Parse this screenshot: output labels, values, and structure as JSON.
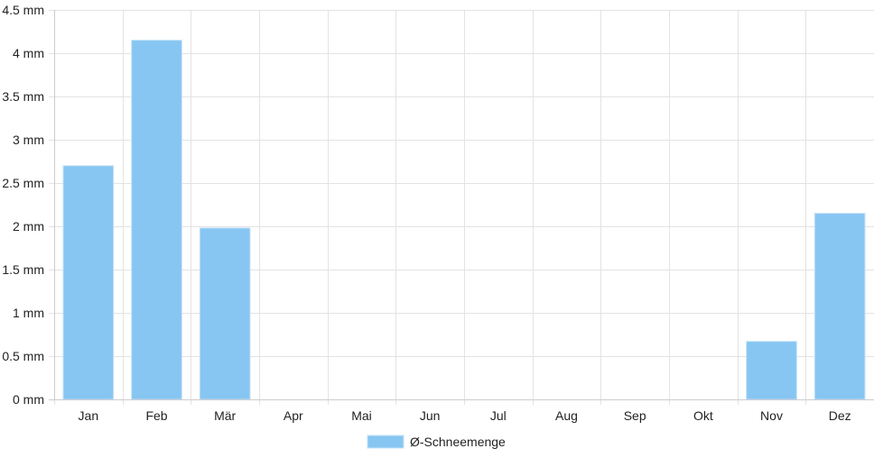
{
  "chart_data": {
    "type": "bar",
    "categories": [
      "Jan",
      "Feb",
      "Mär",
      "Apr",
      "Mai",
      "Jun",
      "Jul",
      "Aug",
      "Sep",
      "Okt",
      "Nov",
      "Dez"
    ],
    "series": [
      {
        "name": "Ø-Schneemenge",
        "values": [
          2.7,
          4.15,
          1.98,
          0,
          0,
          0,
          0,
          0,
          0,
          0,
          0.67,
          2.15
        ],
        "color": "#87c6f2"
      }
    ],
    "ylim": [
      0,
      4.5
    ],
    "y_ticks": [
      "0 mm",
      "0.5 mm",
      "1 mm",
      "1.5 mm",
      "2 mm",
      "2.5 mm",
      "3 mm",
      "3.5 mm",
      "4 mm",
      "4.5 mm"
    ],
    "y_tick_values": [
      0,
      0.5,
      1,
      1.5,
      2,
      2.5,
      3,
      3.5,
      4,
      4.5
    ],
    "grid": true,
    "legend_position": "bottom",
    "grid_color": "#e3e3e3",
    "axis_color": "#cccccc",
    "bar_border_color": "#c4e2f8"
  }
}
